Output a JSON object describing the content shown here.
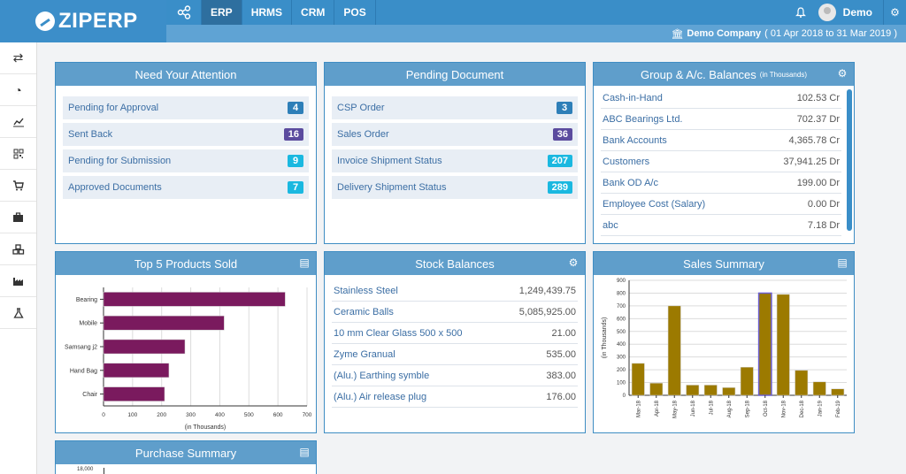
{
  "app": {
    "logo": "ZIPERP"
  },
  "nav": {
    "items": [
      "ERP",
      "HRMS",
      "CRM",
      "POS"
    ],
    "active": "ERP"
  },
  "user": {
    "name": "Demo"
  },
  "company": {
    "name": "Demo Company",
    "period": "( 01 Apr 2018 to 31 Mar 2019 )"
  },
  "sidebar": {
    "icons": [
      "exchange-icon",
      "dashboard-icon",
      "chart-icon",
      "qrcode-icon",
      "cart-icon",
      "briefcase-icon",
      "cubes-icon",
      "factory-icon",
      "flask-icon"
    ]
  },
  "attention": {
    "title": "Need Your Attention",
    "items": [
      {
        "label": "Pending for Approval",
        "count": "4",
        "color": "#2e7fb8"
      },
      {
        "label": "Sent Back",
        "count": "16",
        "color": "#5b4b9e"
      },
      {
        "label": "Pending for Submission",
        "count": "9",
        "color": "#1ab8e0"
      },
      {
        "label": "Approved Documents",
        "count": "7",
        "color": "#1ab8e0"
      }
    ]
  },
  "pending": {
    "title": "Pending Document",
    "items": [
      {
        "label": "CSP Order",
        "count": "3",
        "color": "#2e7fb8"
      },
      {
        "label": "Sales Order",
        "count": "36",
        "color": "#5b4b9e"
      },
      {
        "label": "Invoice Shipment Status",
        "count": "207",
        "color": "#1ab8e0"
      },
      {
        "label": "Delivery Shipment Status",
        "count": "289",
        "color": "#1ab8e0"
      }
    ]
  },
  "balances": {
    "title": "Group & A/c. Balances",
    "subtitle": "(in Thousands)",
    "items": [
      {
        "label": "Cash-in-Hand",
        "value": "102.53 Cr"
      },
      {
        "label": "ABC Bearings Ltd.",
        "value": "702.37 Dr"
      },
      {
        "label": "Bank Accounts",
        "value": "4,365.78 Cr"
      },
      {
        "label": "Customers",
        "value": "37,941.25 Dr"
      },
      {
        "label": "Bank OD A/c",
        "value": "199.00 Dr"
      },
      {
        "label": "Employee Cost (Salary)",
        "value": "0.00 Dr"
      },
      {
        "label": "abc",
        "value": "7.18 Dr"
      }
    ]
  },
  "stock": {
    "title": "Stock Balances",
    "items": [
      {
        "label": "Stainless Steel",
        "value": "1,249,439.75"
      },
      {
        "label": "Ceramic Balls",
        "value": "5,085,925.00"
      },
      {
        "label": "10 mm Clear Glass 500 x 500",
        "value": "21.00"
      },
      {
        "label": "Zyme Granual",
        "value": "535.00"
      },
      {
        "label": "(Alu.) Earthing symble",
        "value": "383.00"
      },
      {
        "label": "(Alu.) Air release plug",
        "value": "176.00"
      }
    ]
  },
  "top_products": {
    "title": "Top 5 Products Sold"
  },
  "sales_summary": {
    "title": "Sales Summary"
  },
  "purchase_summary": {
    "title": "Purchase Summary",
    "tick": "18,000"
  },
  "chart_data": [
    {
      "type": "bar",
      "orientation": "horizontal",
      "title": "Top 5 Products Sold",
      "categories": [
        "Bearing",
        "Mobile",
        "Samsang j2",
        "Hand Bag",
        "Chair"
      ],
      "values": [
        625,
        415,
        280,
        225,
        210
      ],
      "xlabel": "(in Thousands)",
      "xlim": [
        0,
        700
      ],
      "xticks": [
        0,
        100,
        200,
        300,
        400,
        500,
        600,
        700
      ],
      "color": "#7a1a5e"
    },
    {
      "type": "bar",
      "title": "Sales Summary",
      "categories": [
        "Mar-18",
        "Apr-18",
        "May-18",
        "Jun-18",
        "Jul-18",
        "Aug-18",
        "Sep-18",
        "Oct-18",
        "Nov-18",
        "Dec-18",
        "Jan-19",
        "Feb-19"
      ],
      "values": [
        250,
        95,
        700,
        80,
        80,
        60,
        220,
        800,
        790,
        195,
        105,
        50
      ],
      "highlighted": "Oct-18",
      "ylabel": "(in Thousands)",
      "ylim": [
        0,
        900
      ],
      "yticks": [
        0,
        100,
        200,
        300,
        400,
        500,
        600,
        700,
        800,
        900
      ],
      "color": "#9c7a00",
      "highlight_color": "#6b5fd0"
    }
  ]
}
